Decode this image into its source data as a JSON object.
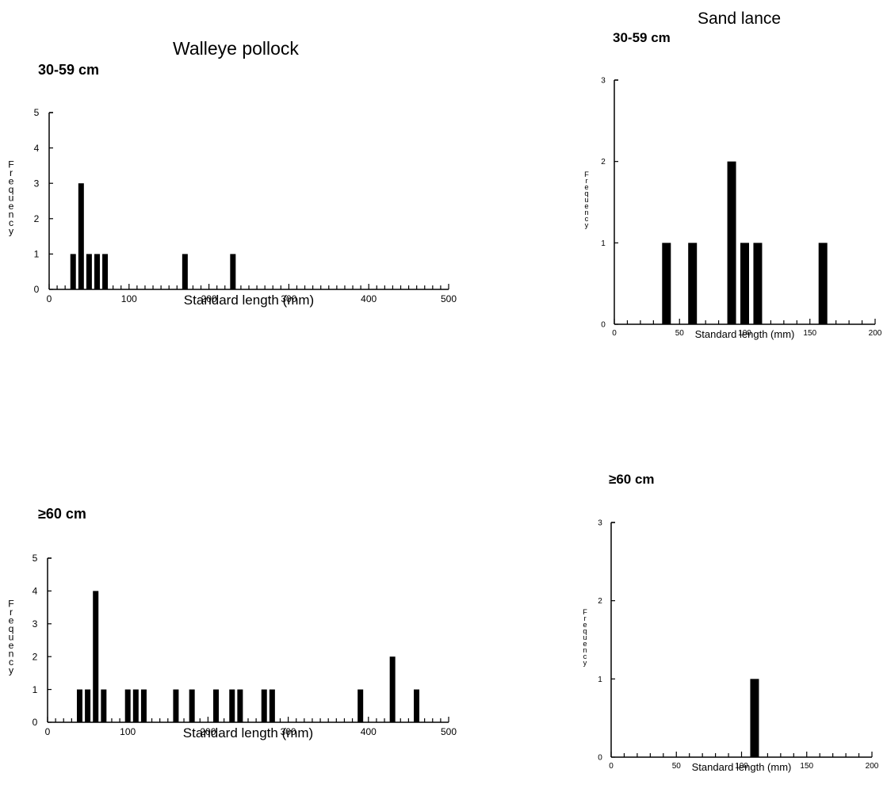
{
  "chart_data": [
    {
      "type": "bar",
      "title": "Walleye pollock",
      "subtitle": "30-59 cm",
      "xlabel": "Standard length (mm)",
      "ylabel": "Frequency",
      "xlim": [
        0,
        500
      ],
      "ylim": [
        0,
        5
      ],
      "xticks": [
        0,
        100,
        200,
        300,
        400,
        500
      ],
      "yticks": [
        0,
        1,
        2,
        3,
        4,
        5
      ],
      "x": [
        30,
        40,
        50,
        60,
        70,
        170,
        230
      ],
      "values": [
        1,
        3,
        1,
        1,
        1,
        1,
        1
      ]
    },
    {
      "type": "bar",
      "title": "",
      "subtitle": "≥60 cm",
      "xlabel": "Standard length (mm)",
      "ylabel": "Frequency",
      "xlim": [
        0,
        500
      ],
      "ylim": [
        0,
        5
      ],
      "xticks": [
        0,
        100,
        200,
        300,
        400,
        500
      ],
      "yticks": [
        0,
        1,
        2,
        3,
        4,
        5
      ],
      "x": [
        40,
        50,
        60,
        70,
        100,
        110,
        120,
        160,
        180,
        210,
        230,
        240,
        270,
        280,
        390,
        430,
        460
      ],
      "values": [
        1,
        1,
        4,
        1,
        1,
        1,
        1,
        1,
        1,
        1,
        1,
        1,
        1,
        1,
        1,
        2,
        1
      ]
    },
    {
      "type": "bar",
      "title": "Sand lance",
      "subtitle": "30-59 cm",
      "xlabel": "Standard length (mm)",
      "ylabel": "Frequency",
      "xlim": [
        0,
        200
      ],
      "ylim": [
        0,
        3
      ],
      "xticks": [
        0,
        50,
        100,
        150,
        200
      ],
      "yticks": [
        0,
        1,
        2,
        3
      ],
      "x": [
        40,
        60,
        90,
        100,
        110,
        160
      ],
      "values": [
        1,
        1,
        2,
        1,
        1,
        1
      ]
    },
    {
      "type": "bar",
      "title": "",
      "subtitle": "≥60 cm",
      "xlabel": "Standard length (mm)",
      "ylabel": "Frequency",
      "xlim": [
        0,
        200
      ],
      "ylim": [
        0,
        3
      ],
      "xticks": [
        0,
        50,
        100,
        150,
        200
      ],
      "yticks": [
        0,
        1,
        2,
        3
      ],
      "x": [
        110
      ],
      "values": [
        1
      ]
    }
  ]
}
